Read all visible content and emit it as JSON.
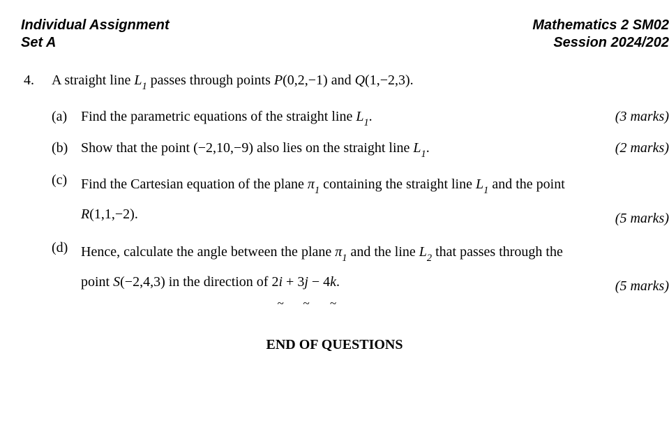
{
  "header": {
    "left_line1": "Individual Assignment",
    "left_line2": "Set A",
    "right_line1": "Mathematics 2 SM02",
    "right_line2": "Session 2024/202"
  },
  "question": {
    "number": "4.",
    "stem_pre": "A straight line ",
    "stem_L1": "L",
    "stem_L1_sub": "1",
    "stem_mid": " passes through points ",
    "stem_P": "P",
    "stem_Pcoords": "(0,2,−1)",
    "stem_and": " and ",
    "stem_Q": "Q",
    "stem_Qcoords": "(1,−2,3).",
    "parts": {
      "a": {
        "label": "(a)",
        "pre": "Find the parametric equations of the straight line",
        "L": "L",
        "Lsub": "1",
        "post": ".",
        "marks": "(3 marks)"
      },
      "b": {
        "label": "(b)",
        "pre": "Show that the point ",
        "pt": "(−2,10,−9)",
        "mid": " also lies on the straight line ",
        "L": "L",
        "Lsub": "1",
        "post": ".",
        "marks": "(2 marks)"
      },
      "c": {
        "label": "(c)",
        "pre": "Find the Cartesian equation of the plane ",
        "pi": "π",
        "pisub": "1",
        "mid1": " containing the straight line ",
        "L": "L",
        "Lsub": "1",
        "mid2": " and the point ",
        "R": "R",
        "Rcoords": "(1,1,−2).",
        "marks": "(5 marks)"
      },
      "d": {
        "label": "(d)",
        "pre": "Hence, calculate the angle between the plane ",
        "pi": "π",
        "pisub": "1",
        "mid1": " and the line ",
        "L2": "L",
        "L2sub": "2",
        "mid2": " that passes through the point ",
        "S": "S",
        "Scoords": "(−2,4,3)",
        "mid3": " in the direction of ",
        "c1": "2",
        "i": "i",
        "plus1": " + ",
        "c2": "3",
        "j": "j",
        "minus": " − ",
        "c3": "4",
        "k": "k",
        "post": ".",
        "marks": "(5 marks)"
      }
    }
  },
  "footer": "END OF QUESTIONS"
}
